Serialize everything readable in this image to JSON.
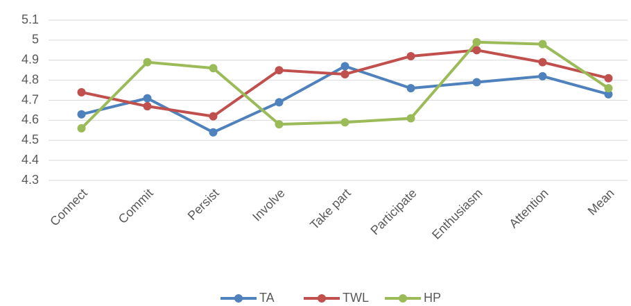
{
  "chart_data": {
    "type": "line",
    "categories": [
      "Connect",
      "Commit",
      "Persist",
      "Involve",
      "Take part",
      "Participate",
      "Enthusiasm",
      "Attention",
      "Mean"
    ],
    "series": [
      {
        "name": "TA",
        "color": "#4f81bd",
        "values": [
          4.63,
          4.71,
          4.54,
          4.69,
          4.87,
          4.76,
          4.79,
          4.82,
          4.73
        ]
      },
      {
        "name": "TWL",
        "color": "#c0504d",
        "values": [
          4.74,
          4.67,
          4.62,
          4.85,
          4.83,
          4.92,
          4.95,
          4.89,
          4.81
        ]
      },
      {
        "name": "HP",
        "color": "#9bbb59",
        "values": [
          4.56,
          4.89,
          4.86,
          4.58,
          4.59,
          4.61,
          4.99,
          4.98,
          4.76
        ]
      }
    ],
    "ylim": [
      4.3,
      5.1
    ],
    "yticks": [
      4.3,
      4.4,
      4.5,
      4.6,
      4.7,
      4.8,
      4.9,
      5,
      5.1
    ],
    "grid": true,
    "legend": "bottom"
  }
}
